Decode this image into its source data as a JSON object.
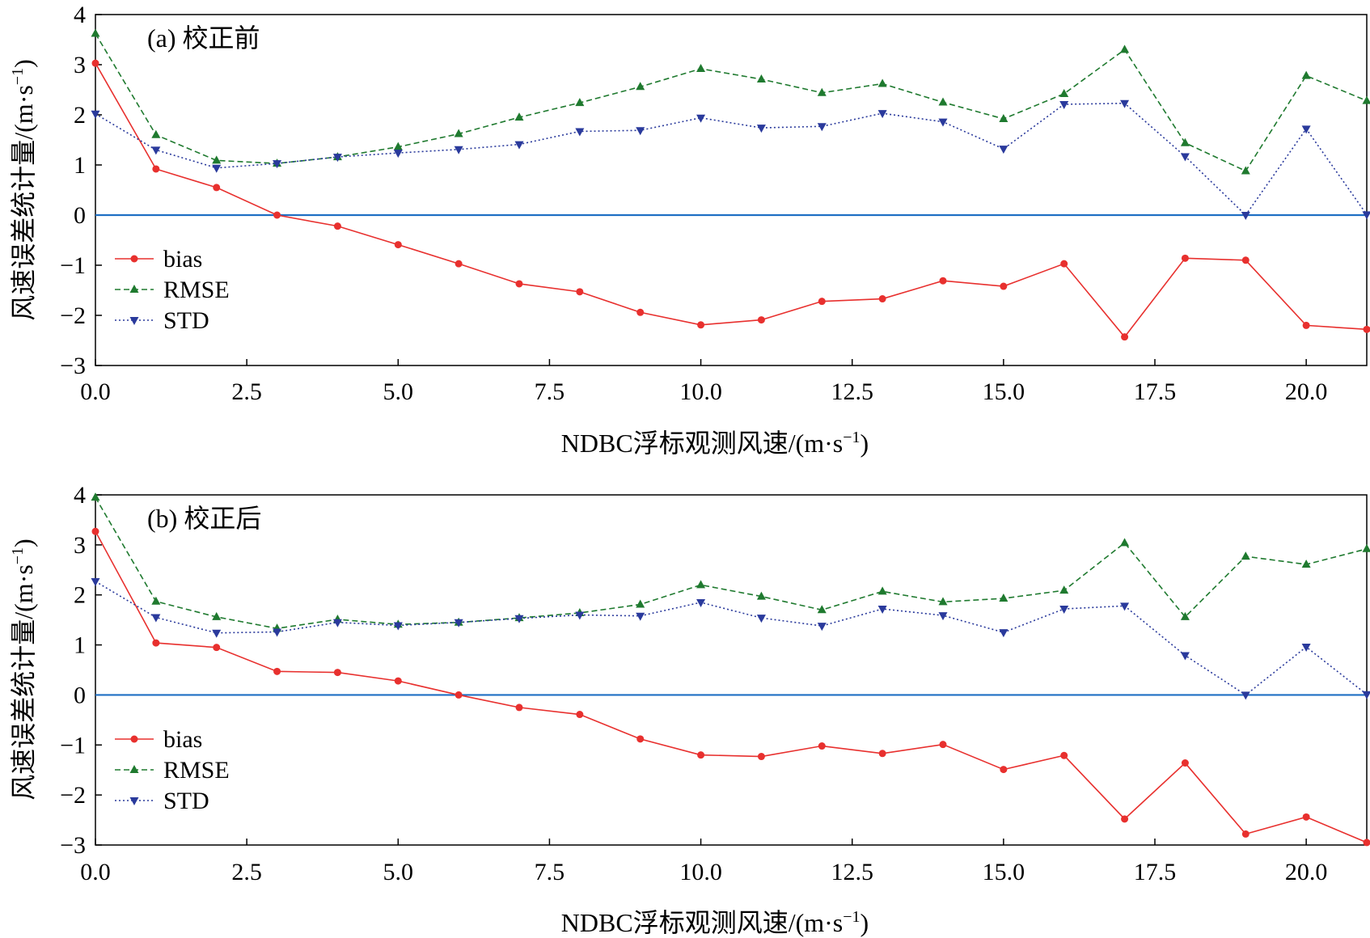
{
  "chart_data": [
    {
      "type": "line",
      "title": "(a) 校正前",
      "xlabel": "NDBC浮标观测风速/(m·s",
      "xlabel_sup": "−1",
      "xlabel_end": ")",
      "ylabel": "风速误差统计量/(m·s",
      "ylabel_sup": "−1",
      "ylabel_end": ")",
      "xlim": [
        0,
        21
      ],
      "ylim": [
        -3,
        4
      ],
      "xticks": [
        "0.0",
        "2.5",
        "5.0",
        "7.5",
        "10.0",
        "12.5",
        "15.0",
        "17.5",
        "20.0"
      ],
      "yticks": [
        "4",
        "3",
        "2",
        "1",
        "0",
        "−1",
        "−2",
        "−3"
      ],
      "grid": false,
      "legend_position": "lower-left",
      "zero_line": true,
      "x": [
        0,
        1,
        2,
        3,
        4,
        5,
        6,
        7,
        8,
        9,
        10,
        11,
        12,
        13,
        14,
        15,
        16,
        17,
        18,
        19,
        20,
        21
      ],
      "series": [
        {
          "name": "bias",
          "color": "#e8302e",
          "style": "solid",
          "marker": "circle",
          "values": [
            3.03,
            0.92,
            0.55,
            0.0,
            -0.22,
            -0.59,
            -0.97,
            -1.37,
            -1.53,
            -1.94,
            -2.19,
            -2.09,
            -1.72,
            -1.67,
            -1.31,
            -1.42,
            -0.97,
            -2.43,
            -0.86,
            -0.9,
            -2.2,
            -2.28
          ]
        },
        {
          "name": "RMSE",
          "color": "#1f7a2f",
          "style": "dashed",
          "marker": "triangle-up",
          "values": [
            3.62,
            1.6,
            1.09,
            1.03,
            1.16,
            1.36,
            1.62,
            1.95,
            2.24,
            2.56,
            2.92,
            2.71,
            2.44,
            2.62,
            2.25,
            1.92,
            2.42,
            3.3,
            1.44,
            0.88,
            2.78,
            2.28
          ]
        },
        {
          "name": "STD",
          "color": "#2a3a9c",
          "style": "dotted",
          "marker": "triangle-down",
          "values": [
            2.02,
            1.3,
            0.94,
            1.03,
            1.16,
            1.24,
            1.31,
            1.41,
            1.67,
            1.69,
            1.94,
            1.74,
            1.77,
            2.03,
            1.86,
            1.32,
            2.21,
            2.23,
            1.17,
            0.0,
            1.72,
            0.01
          ]
        }
      ]
    },
    {
      "type": "line",
      "title": "(b) 校正后",
      "xlabel": "NDBC浮标观测风速/(m·s",
      "xlabel_sup": "−1",
      "xlabel_end": ")",
      "ylabel": "风速误差统计量/(m·s",
      "ylabel_sup": "−1",
      "ylabel_end": ")",
      "xlim": [
        0,
        21
      ],
      "ylim": [
        -3,
        4
      ],
      "xticks": [
        "0.0",
        "2.5",
        "5.0",
        "7.5",
        "10.0",
        "12.5",
        "15.0",
        "17.5",
        "20.0"
      ],
      "yticks": [
        "4",
        "3",
        "2",
        "1",
        "0",
        "−1",
        "−2",
        "−3"
      ],
      "grid": false,
      "legend_position": "lower-left",
      "zero_line": true,
      "x": [
        0,
        1,
        2,
        3,
        4,
        5,
        6,
        7,
        8,
        9,
        10,
        11,
        12,
        13,
        14,
        15,
        16,
        17,
        18,
        19,
        20,
        21
      ],
      "series": [
        {
          "name": "bias",
          "color": "#e8302e",
          "style": "solid",
          "marker": "circle",
          "values": [
            3.27,
            1.04,
            0.95,
            0.47,
            0.45,
            0.28,
            0.0,
            -0.25,
            -0.39,
            -0.88,
            -1.2,
            -1.23,
            -1.02,
            -1.17,
            -0.99,
            -1.49,
            -1.21,
            -2.48,
            -1.36,
            -2.78,
            -2.44,
            -2.95
          ]
        },
        {
          "name": "RMSE",
          "color": "#1f7a2f",
          "style": "dashed",
          "marker": "triangle-up",
          "values": [
            3.95,
            1.87,
            1.56,
            1.33,
            1.51,
            1.41,
            1.45,
            1.54,
            1.64,
            1.81,
            2.2,
            1.97,
            1.7,
            2.07,
            1.86,
            1.93,
            2.09,
            3.04,
            1.56,
            2.77,
            2.61,
            2.92
          ]
        },
        {
          "name": "STD",
          "color": "#2a3a9c",
          "style": "dotted",
          "marker": "triangle-down",
          "values": [
            2.27,
            1.55,
            1.24,
            1.26,
            1.45,
            1.39,
            1.45,
            1.53,
            1.6,
            1.58,
            1.85,
            1.54,
            1.38,
            1.72,
            1.59,
            1.25,
            1.72,
            1.78,
            0.79,
            0.0,
            0.96,
            0.01
          ]
        }
      ]
    }
  ]
}
